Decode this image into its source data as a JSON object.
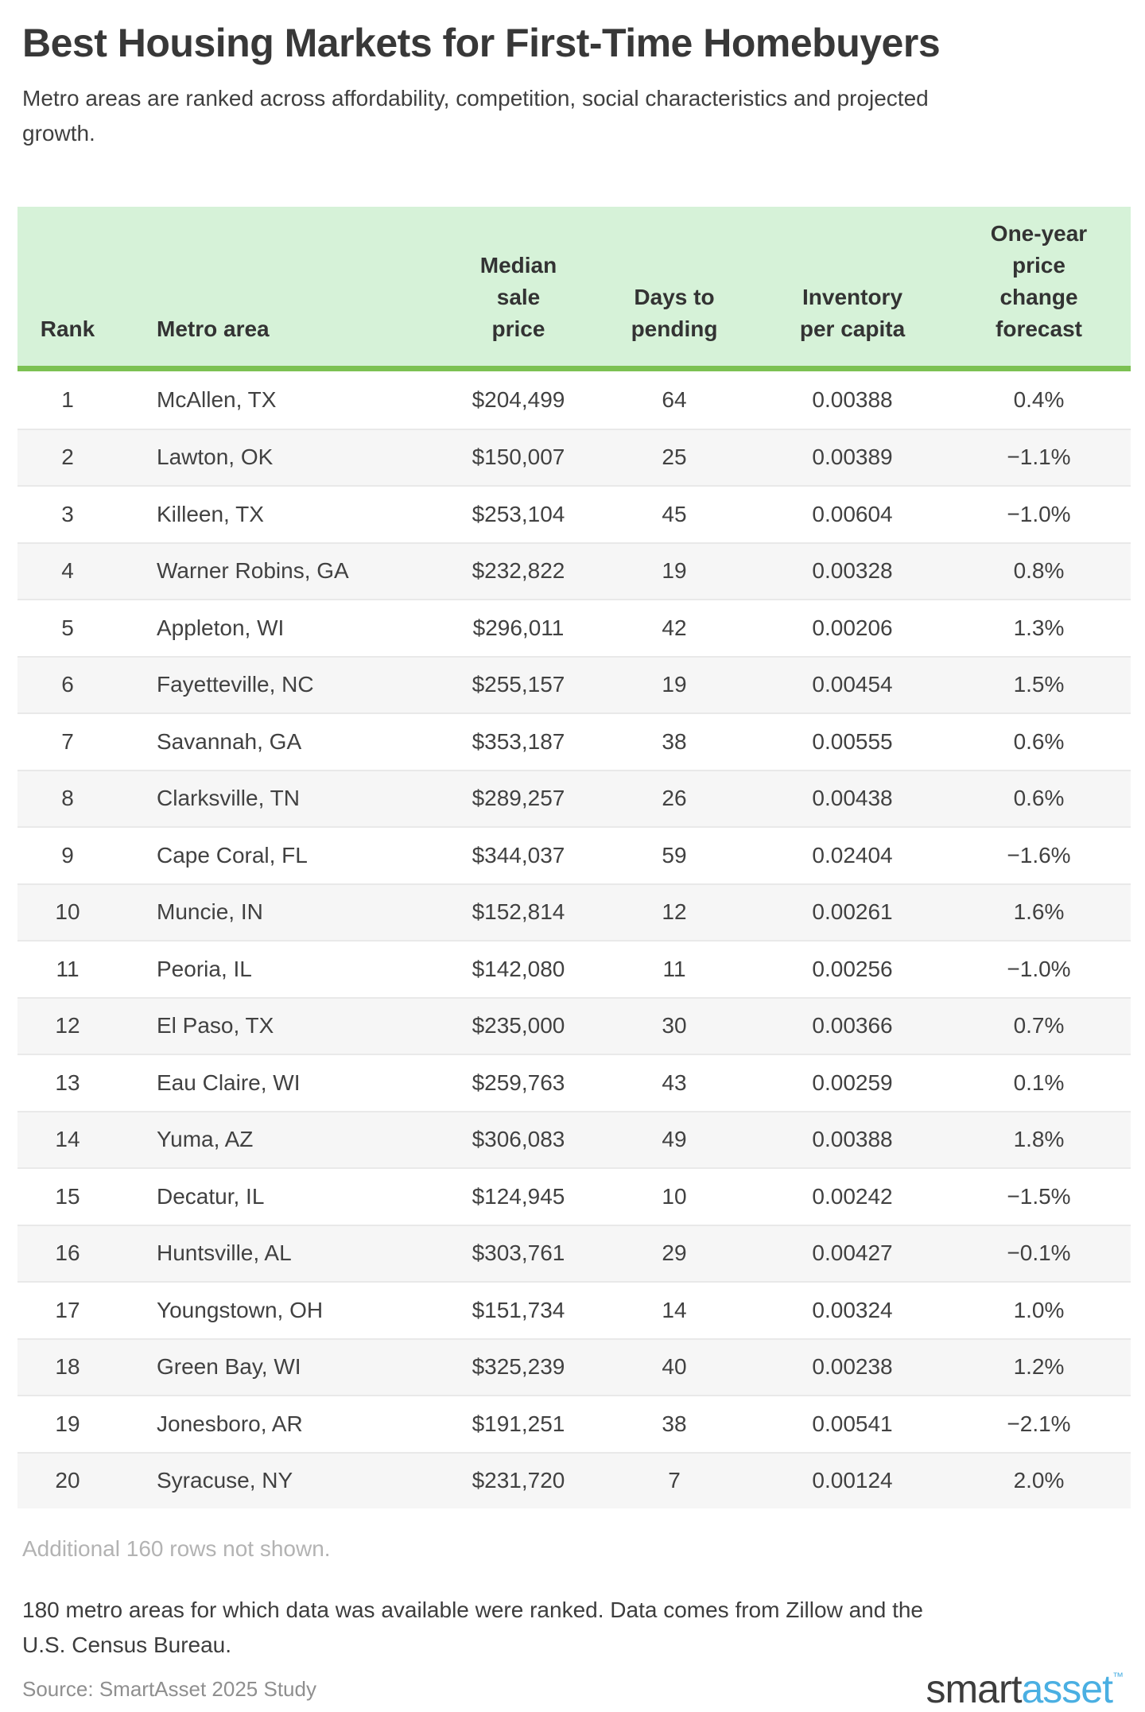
{
  "title": "Best Housing Markets for First-Time Homebuyers",
  "subtitle": "Metro areas are ranked across affordability, competition, social characteristics and projected growth.",
  "colors": {
    "header_background_green": "#d6f2d8",
    "header_border_green": "#7cc152",
    "row_stripe_gray": "#f6f6f6",
    "row_divider_gray": "#e9e9e9",
    "text_dark": "#3d3d3d",
    "note_light_gray": "#b3b3b3",
    "source_gray": "#8f8f8f",
    "logo_blue": "#4aafe2"
  },
  "chart_data": {
    "type": "table",
    "title": "Best Housing Markets for First-Time Homebuyers",
    "columns": [
      {
        "key": "rank",
        "label": "Rank",
        "align": "center"
      },
      {
        "key": "metro-area",
        "label": "Metro area",
        "align": "left"
      },
      {
        "key": "median-sale-price",
        "label": "Median\nsale\nprice",
        "align": "center"
      },
      {
        "key": "days-to-pending",
        "label": "Days to\npending",
        "align": "center"
      },
      {
        "key": "inventory-per-capita",
        "label": "Inventory\nper capita",
        "align": "center"
      },
      {
        "key": "one-year-price-change-forecast",
        "label": "One-year\nprice\nchange\nforecast",
        "align": "center"
      }
    ],
    "rows": [
      [
        "1",
        "McAllen, TX",
        "$204,499",
        "64",
        "0.00388",
        "0.4%"
      ],
      [
        "2",
        "Lawton, OK",
        "$150,007",
        "25",
        "0.00389",
        "−1.1%"
      ],
      [
        "3",
        "Killeen, TX",
        "$253,104",
        "45",
        "0.00604",
        "−1.0%"
      ],
      [
        "4",
        "Warner Robins, GA",
        "$232,822",
        "19",
        "0.00328",
        "0.8%"
      ],
      [
        "5",
        "Appleton, WI",
        "$296,011",
        "42",
        "0.00206",
        "1.3%"
      ],
      [
        "6",
        "Fayetteville, NC",
        "$255,157",
        "19",
        "0.00454",
        "1.5%"
      ],
      [
        "7",
        "Savannah, GA",
        "$353,187",
        "38",
        "0.00555",
        "0.6%"
      ],
      [
        "8",
        "Clarksville, TN",
        "$289,257",
        "26",
        "0.00438",
        "0.6%"
      ],
      [
        "9",
        "Cape Coral, FL",
        "$344,037",
        "59",
        "0.02404",
        "−1.6%"
      ],
      [
        "10",
        "Muncie, IN",
        "$152,814",
        "12",
        "0.00261",
        "1.6%"
      ],
      [
        "11",
        "Peoria, IL",
        "$142,080",
        "11",
        "0.00256",
        "−1.0%"
      ],
      [
        "12",
        "El Paso, TX",
        "$235,000",
        "30",
        "0.00366",
        "0.7%"
      ],
      [
        "13",
        "Eau Claire, WI",
        "$259,763",
        "43",
        "0.00259",
        "0.1%"
      ],
      [
        "14",
        "Yuma, AZ",
        "$306,083",
        "49",
        "0.00388",
        "1.8%"
      ],
      [
        "15",
        "Decatur, IL",
        "$124,945",
        "10",
        "0.00242",
        "−1.5%"
      ],
      [
        "16",
        "Huntsville, AL",
        "$303,761",
        "29",
        "0.00427",
        "−0.1%"
      ],
      [
        "17",
        "Youngstown, OH",
        "$151,734",
        "14",
        "0.00324",
        "1.0%"
      ],
      [
        "18",
        "Green Bay, WI",
        "$325,239",
        "40",
        "0.00238",
        "1.2%"
      ],
      [
        "19",
        "Jonesboro, AR",
        "$191,251",
        "38",
        "0.00541",
        "−2.1%"
      ],
      [
        "20",
        "Syracuse, NY",
        "$231,720",
        "7",
        "0.00124",
        "2.0%"
      ]
    ]
  },
  "notes": {
    "additional_rows": "Additional 160 rows not shown.",
    "methodology": "180 metro areas for which data was available were ranked. Data comes from Zillow and the U.S. Census Bureau.",
    "source": "Source: SmartAsset 2025 Study"
  },
  "logo": {
    "part1": "smart",
    "part2": "asset",
    "trademark": "™"
  }
}
